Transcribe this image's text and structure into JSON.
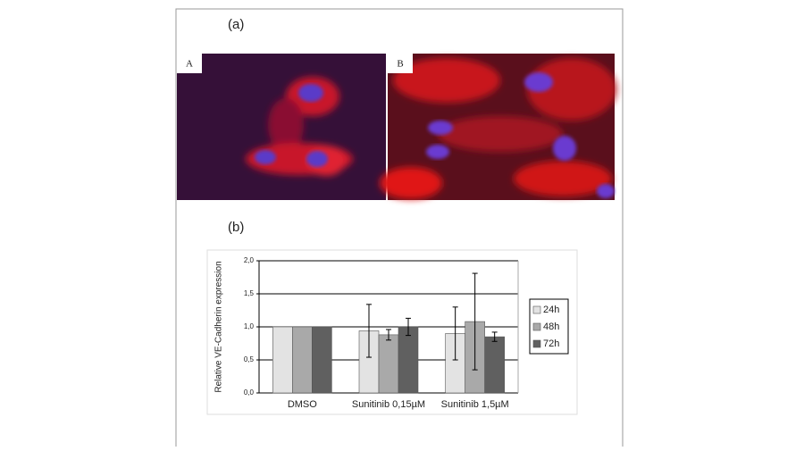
{
  "figure": {
    "panel_a": "(a)",
    "image_a": "A",
    "image_b": "B",
    "panel_b": "(b)"
  },
  "chart_data": {
    "type": "bar",
    "ylabel": "Relative VE-Cadherin expression",
    "categories": [
      "DMSO",
      "Sunitinib 0,15µM",
      "Sunitinib 1,5µM"
    ],
    "series": [
      {
        "name": "24h",
        "color": "#e3e3e3",
        "values": [
          1.0,
          0.94,
          0.9
        ],
        "errors": [
          null,
          0.4,
          0.4
        ]
      },
      {
        "name": "48h",
        "color": "#a9a9a9",
        "values": [
          1.0,
          0.88,
          1.08
        ],
        "errors": [
          null,
          0.08,
          0.73
        ]
      },
      {
        "name": "72h",
        "color": "#606060",
        "values": [
          1.0,
          1.0,
          0.85
        ],
        "errors": [
          null,
          0.13,
          0.07
        ]
      }
    ],
    "ylim": [
      0,
      2
    ],
    "yticks": [
      {
        "value": 0,
        "label": "0,0"
      },
      {
        "value": 0.5,
        "label": "0,5"
      },
      {
        "value": 1,
        "label": "1,0"
      },
      {
        "value": 1.5,
        "label": "1,5"
      },
      {
        "value": 2,
        "label": "2,0"
      }
    ],
    "grid": true,
    "legend": "right"
  }
}
